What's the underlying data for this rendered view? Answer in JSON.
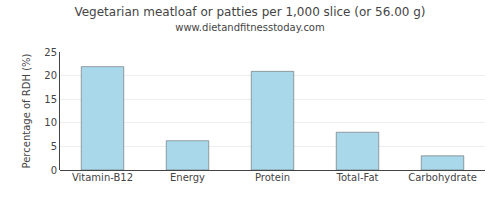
{
  "chart_data": {
    "type": "bar",
    "title": "Vegetarian meatloaf or patties per 1,000 slice (or 56.00 g)",
    "subtitle": "www.dietandfitnesstoday.com",
    "categories": [
      "Vitamin-B12",
      "Energy",
      "Protein",
      "Total-Fat",
      "Carbohydrate"
    ],
    "values": [
      21.9,
      6.2,
      20.9,
      8.0,
      3.0
    ],
    "color": "#a8d8ea",
    "ylabel": "Percentage of RDH (%)",
    "ylim": [
      0,
      25
    ],
    "yticks": [
      0,
      5,
      10,
      15,
      20,
      25
    ],
    "grid": true
  }
}
